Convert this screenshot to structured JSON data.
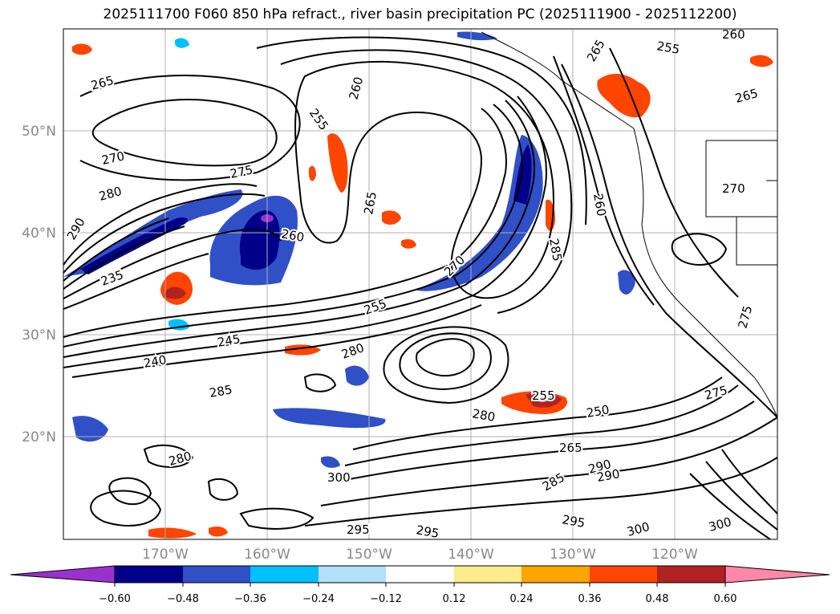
{
  "title": "2025111700 F060 850 hPa refract., river basin precipitation PC (2025111900 - 2025112200)",
  "map": {
    "lon_ticks": [
      "170°W",
      "160°W",
      "150°W",
      "140°W",
      "130°W",
      "120°W"
    ],
    "lat_ticks": [
      "50°N",
      "40°N",
      "30°N",
      "20°N"
    ],
    "grid_color": "#b0b0b0",
    "tick_label_color": "#888888",
    "contour_color": "#000000",
    "contour_labels": [
      "265",
      "270",
      "275",
      "280",
      "285",
      "290",
      "235",
      "240",
      "245",
      "255",
      "260",
      "265",
      "260",
      "255",
      "260",
      "265",
      "270",
      "275",
      "280",
      "285",
      "290",
      "295",
      "300",
      "280",
      "285",
      "255",
      "250",
      "265",
      "275",
      "260",
      "255",
      "295",
      "300",
      "265",
      "270",
      "280",
      "290",
      "300",
      "295"
    ]
  },
  "colorbar": {
    "colors": [
      "#9932cc",
      "#00008b",
      "#3050c8",
      "#00bfff",
      "#b0e0fa",
      "#ffffff",
      "#ffeb8c",
      "#ffa500",
      "#ff4500",
      "#b22222",
      "#ff88aa"
    ],
    "tick_labels": [
      "−0.60",
      "−0.48",
      "−0.36",
      "−0.24",
      "−0.12",
      "0.12",
      "0.24",
      "0.36",
      "0.48",
      "0.60"
    ],
    "extend": "both"
  }
}
